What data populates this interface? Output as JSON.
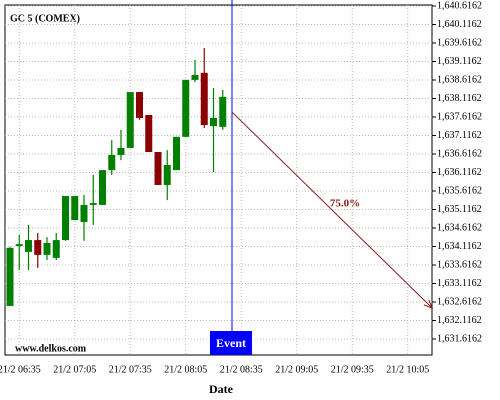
{
  "chart_data": {
    "type": "candlestick",
    "title": "GC 5 (COMEX)",
    "x_label": "Date",
    "watermark": "www.delkos.com",
    "categories": [
      null,
      "21/2 06:35",
      null,
      null,
      null,
      null,
      null,
      "21/2 07:05",
      null,
      null,
      null,
      null,
      null,
      "21/2 07:35",
      null,
      null,
      null,
      null,
      null,
      "21/2 08:05",
      null,
      null,
      null,
      null,
      null,
      "21/2 08:35",
      null,
      null,
      null,
      null,
      null,
      "21/2 09:05",
      null,
      null,
      null,
      null,
      null,
      "21/2 09:35",
      null,
      null,
      null,
      null,
      null,
      "21/2 10:05",
      null,
      null
    ],
    "open": [
      1632.51,
      1634.13,
      1633.97,
      1634.29,
      1633.89,
      1633.81,
      1634.29,
      1634.83,
      1634.78,
      1635.24,
      1635.24,
      1636.18,
      1636.59,
      1636.78,
      1638.29,
      1637.67,
      1636.67,
      1635.78,
      1636.18,
      1637.08,
      1638.62,
      1638.81,
      1637.37,
      1637.35,
      null,
      null,
      null,
      null,
      null,
      null,
      null,
      null,
      null,
      null,
      null,
      null,
      null,
      null,
      null,
      null,
      null,
      null,
      null,
      null,
      null,
      null
    ],
    "high": [
      1634.1,
      1634.43,
      1634.7,
      1634.48,
      1634.37,
      1634.48,
      1635.48,
      1635.48,
      1635.51,
      1636.05,
      1636.18,
      1636.99,
      1637.27,
      1638.29,
      1638.29,
      1637.67,
      1636.67,
      1636.72,
      1637.08,
      1638.62,
      1639.16,
      1639.48,
      1638.4,
      1638.35,
      null,
      null,
      null,
      null,
      null,
      null,
      null,
      null,
      null,
      null,
      null,
      null,
      null,
      null,
      null,
      null,
      null,
      null,
      null,
      null,
      null,
      null
    ],
    "low": [
      1632.51,
      1633.48,
      1633.48,
      1633.54,
      1633.75,
      1633.75,
      1634.27,
      1634.83,
      1634.27,
      1634.7,
      1635.24,
      1636.05,
      1636.45,
      1636.78,
      1637.54,
      1636.67,
      1635.78,
      1635.37,
      1636.18,
      1637.08,
      1638.56,
      1637.32,
      1636.13,
      1637.27,
      null,
      null,
      null,
      null,
      null,
      null,
      null,
      null,
      null,
      null,
      null,
      null,
      null,
      null,
      null,
      null,
      null,
      null,
      null,
      null,
      null,
      null
    ],
    "close": [
      1634.08,
      1634.18,
      1634.29,
      1633.89,
      1634.21,
      1634.29,
      1635.48,
      1635.48,
      1635.24,
      1635.29,
      1636.18,
      1636.59,
      1636.78,
      1638.29,
      1637.59,
      1636.67,
      1635.78,
      1636.32,
      1637.08,
      1638.62,
      1638.75,
      1637.4,
      1637.59,
      1638.16,
      null,
      null,
      null,
      null,
      null,
      null,
      null,
      null,
      null,
      null,
      null,
      null,
      null,
      null,
      null,
      null,
      null,
      null,
      null,
      null,
      null,
      null
    ],
    "up_color": "#008000",
    "down_color": "#8b0000",
    "ylim": [
      1631.184,
      1640.643
    ],
    "yticks": [
      {
        "value": 1640.6162,
        "label": "1,640.6162"
      },
      {
        "value": 1640.1162,
        "label": "1,640.1162"
      },
      {
        "value": 1639.6162,
        "label": "1,639.6162"
      },
      {
        "value": 1639.1162,
        "label": "1,639.1162"
      },
      {
        "value": 1638.6162,
        "label": "1,638.6162"
      },
      {
        "value": 1638.1162,
        "label": "1,638.1162"
      },
      {
        "value": 1637.6162,
        "label": "1,637.6162"
      },
      {
        "value": 1637.1162,
        "label": "1,637.1162"
      },
      {
        "value": 1636.6162,
        "label": "1,636.6162"
      },
      {
        "value": 1636.1162,
        "label": "1,636.1162"
      },
      {
        "value": 1635.6162,
        "label": "1,635.6162"
      },
      {
        "value": 1635.1162,
        "label": "1,635.1162"
      },
      {
        "value": 1634.6162,
        "label": "1,634.6162"
      },
      {
        "value": 1634.1162,
        "label": "1,634.1162"
      },
      {
        "value": 1633.6162,
        "label": "1,633.6162"
      },
      {
        "value": 1633.1162,
        "label": "1,633.1162"
      },
      {
        "value": 1632.6162,
        "label": "1,632.6162"
      },
      {
        "value": 1632.1162,
        "label": "1,632.1162"
      },
      {
        "value": 1631.6162,
        "label": "1,631.6162"
      }
    ],
    "grid": true,
    "event": {
      "label": "Event",
      "at": 24,
      "color": "#0000ff"
    },
    "arrow": {
      "x": [
        24,
        45
      ],
      "y": [
        1637.75,
        1632.45
      ],
      "label": "75.0%",
      "value": 75.0,
      "color": "#8b1a1a"
    }
  }
}
